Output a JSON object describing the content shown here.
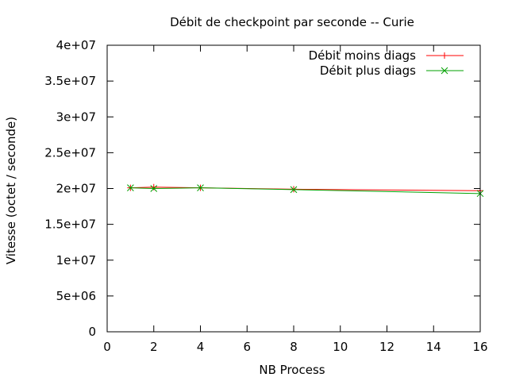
{
  "chart_data": {
    "type": "line",
    "title": "Débit de checkpoint par seconde -- Curie",
    "xlabel": "NB Process",
    "ylabel": "Vitesse (octet / seconde)",
    "xlim": [
      0,
      16
    ],
    "ylim": [
      0,
      40000000
    ],
    "xticks": [
      0,
      2,
      4,
      6,
      8,
      10,
      12,
      14,
      16
    ],
    "xtick_labels": [
      "0",
      "2",
      "4",
      "6",
      "8",
      "10",
      "12",
      "14",
      "16"
    ],
    "yticks": [
      0,
      5000000,
      10000000,
      15000000,
      20000000,
      25000000,
      30000000,
      35000000,
      40000000
    ],
    "ytick_labels": [
      "0",
      "5e+06",
      "1e+07",
      "1.5e+07",
      "2e+07",
      "2.5e+07",
      "3e+07",
      "3.5e+07",
      "4e+07"
    ],
    "grid": false,
    "legend_position": "top-right",
    "series": [
      {
        "name": "Débit moins diags",
        "color": "#ff0000",
        "marker": "plus",
        "x": [
          1,
          2,
          4,
          8,
          16
        ],
        "y": [
          20100000,
          20200000,
          20100000,
          19900000,
          19700000
        ]
      },
      {
        "name": "Débit plus diags",
        "color": "#00a000",
        "marker": "cross",
        "x": [
          1,
          2,
          4,
          8,
          16
        ],
        "y": [
          20100000,
          20000000,
          20100000,
          19850000,
          19300000
        ]
      }
    ]
  }
}
